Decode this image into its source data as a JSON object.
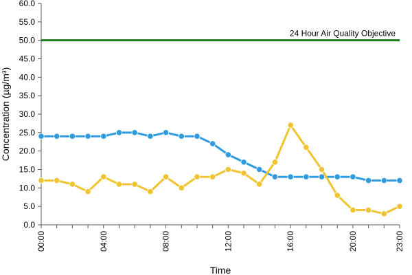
{
  "chart_data": {
    "type": "line",
    "title": "",
    "xlabel": "Time",
    "ylabel": "Concentration (µg/m³)",
    "ylim": [
      0,
      60
    ],
    "y_ticks": [
      "0.0",
      "5.0",
      "10.0",
      "15.0",
      "20.0",
      "25.0",
      "30.0",
      "35.0",
      "40.0",
      "45.0",
      "50.0",
      "55.0",
      "60.0"
    ],
    "x": [
      "00:00",
      "01:00",
      "02:00",
      "03:00",
      "04:00",
      "05:00",
      "06:00",
      "07:00",
      "08:00",
      "09:00",
      "10:00",
      "11:00",
      "12:00",
      "13:00",
      "14:00",
      "15:00",
      "16:00",
      "17:00",
      "18:00",
      "19:00",
      "20:00",
      "21:00",
      "22:00",
      "23:00"
    ],
    "x_tick_labels": [
      "00:00",
      "04:00",
      "08:00",
      "12:00",
      "16:00",
      "20:00",
      "23:00"
    ],
    "grid": false,
    "legend": "none",
    "series": [
      {
        "color": "#2e9be0",
        "values": [
          24,
          24,
          24,
          24,
          24,
          25,
          25,
          24,
          25,
          24,
          24,
          22,
          19,
          17,
          15,
          13,
          13,
          13,
          13,
          13,
          13,
          12,
          12,
          12
        ]
      },
      {
        "color": "#f0c330",
        "values": [
          12,
          12,
          11,
          9,
          13,
          11,
          11,
          9,
          13,
          10,
          13,
          13,
          15,
          14,
          11,
          17,
          27,
          21,
          15,
          8,
          4,
          4,
          3,
          5
        ]
      }
    ],
    "reference_line": {
      "value": 50,
      "label": "24 Hour Air Quality Objective",
      "color": "#1a7a1a"
    }
  }
}
